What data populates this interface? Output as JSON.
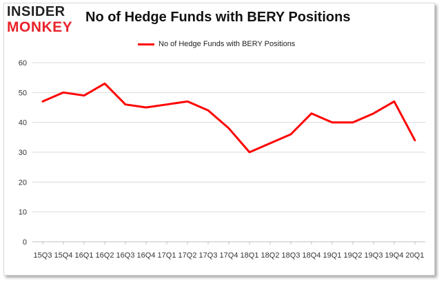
{
  "logo": {
    "line1": "INSIDER",
    "line2": "MONKEY",
    "color_dark": "#222222",
    "color_accent": "#e8232a"
  },
  "chart_data": {
    "type": "line",
    "title": "No of Hedge Funds with BERY Positions",
    "categories": [
      "15Q3",
      "15Q4",
      "16Q1",
      "16Q2",
      "16Q3",
      "16Q4",
      "17Q1",
      "17Q2",
      "17Q3",
      "17Q4",
      "18Q1",
      "18Q2",
      "18Q3",
      "18Q4",
      "19Q1",
      "19Q2",
      "19Q3",
      "19Q4",
      "20Q1"
    ],
    "series": [
      {
        "name": "No of Hedge Funds with BERY  Positions",
        "color": "#ff0000",
        "values": [
          47,
          50,
          49,
          53,
          46,
          45,
          46,
          47,
          44,
          38,
          30,
          33,
          36,
          43,
          40,
          40,
          43,
          47,
          34
        ]
      }
    ],
    "ylim": [
      0,
      60
    ],
    "yticks": [
      0,
      10,
      20,
      30,
      40,
      50,
      60
    ],
    "grid": true,
    "legend": "top-center",
    "xlabel": "",
    "ylabel": ""
  }
}
